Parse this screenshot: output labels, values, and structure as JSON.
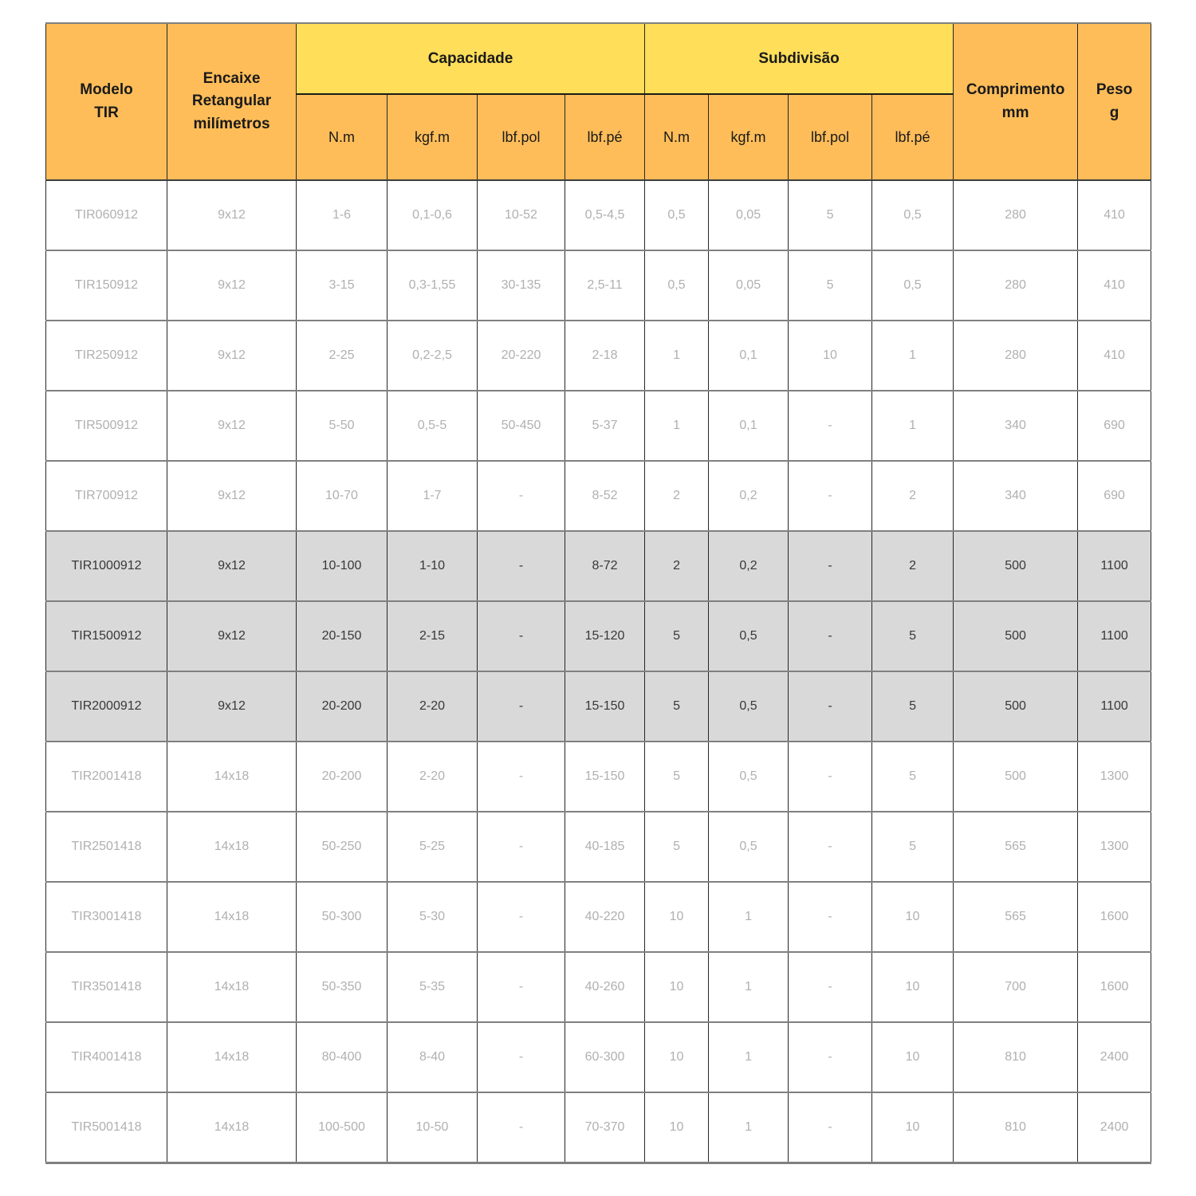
{
  "header": {
    "modelo": [
      "Modelo",
      "TIR"
    ],
    "encaixe": [
      "Encaixe",
      "Retangular",
      "milímetros"
    ],
    "group_capacidade": "Capacidade",
    "group_subdivisao": "Subdivisão",
    "units": [
      "N.m",
      "kgf.m",
      "lbf.pol",
      "lbf.pé",
      "N.m",
      "kgf.m",
      "lbf.pol",
      "lbf.pé"
    ],
    "comprimento": [
      "Comprimento",
      "mm"
    ],
    "peso": [
      "Peso",
      "g"
    ]
  },
  "rows": [
    {
      "modelo": "TIR060912",
      "encaixe": "9x12",
      "cap": [
        "1-6",
        "0,1-0,6",
        "10-52",
        "0,5-4,5"
      ],
      "sub": [
        "0,5",
        "0,05",
        "5",
        "0,5"
      ],
      "comprimento": "280",
      "peso": "410",
      "highlight": false
    },
    {
      "modelo": "TIR150912",
      "encaixe": "9x12",
      "cap": [
        "3-15",
        "0,3-1,55",
        "30-135",
        "2,5-11"
      ],
      "sub": [
        "0,5",
        "0,05",
        "5",
        "0,5"
      ],
      "comprimento": "280",
      "peso": "410",
      "highlight": false
    },
    {
      "modelo": "TIR250912",
      "encaixe": "9x12",
      "cap": [
        "2-25",
        "0,2-2,5",
        "20-220",
        "2-18"
      ],
      "sub": [
        "1",
        "0,1",
        "10",
        "1"
      ],
      "comprimento": "280",
      "peso": "410",
      "highlight": false
    },
    {
      "modelo": "TIR500912",
      "encaixe": "9x12",
      "cap": [
        "5-50",
        "0,5-5",
        "50-450",
        "5-37"
      ],
      "sub": [
        "1",
        "0,1",
        "-",
        "1"
      ],
      "comprimento": "340",
      "peso": "690",
      "highlight": false
    },
    {
      "modelo": "TIR700912",
      "encaixe": "9x12",
      "cap": [
        "10-70",
        "1-7",
        "-",
        "8-52"
      ],
      "sub": [
        "2",
        "0,2",
        "-",
        "2"
      ],
      "comprimento": "340",
      "peso": "690",
      "highlight": false
    },
    {
      "modelo": "TIR1000912",
      "encaixe": "9x12",
      "cap": [
        "10-100",
        "1-10",
        "-",
        "8-72"
      ],
      "sub": [
        "2",
        "0,2",
        "-",
        "2"
      ],
      "comprimento": "500",
      "peso": "1100",
      "highlight": true
    },
    {
      "modelo": "TIR1500912",
      "encaixe": "9x12",
      "cap": [
        "20-150",
        "2-15",
        "-",
        "15-120"
      ],
      "sub": [
        "5",
        "0,5",
        "-",
        "5"
      ],
      "comprimento": "500",
      "peso": "1100",
      "highlight": true
    },
    {
      "modelo": "TIR2000912",
      "encaixe": "9x12",
      "cap": [
        "20-200",
        "2-20",
        "-",
        "15-150"
      ],
      "sub": [
        "5",
        "0,5",
        "-",
        "5"
      ],
      "comprimento": "500",
      "peso": "1100",
      "highlight": true
    },
    {
      "modelo": "TIR2001418",
      "encaixe": "14x18",
      "cap": [
        "20-200",
        "2-20",
        "-",
        "15-150"
      ],
      "sub": [
        "5",
        "0,5",
        "-",
        "5"
      ],
      "comprimento": "500",
      "peso": "1300",
      "highlight": false
    },
    {
      "modelo": "TIR2501418",
      "encaixe": "14x18",
      "cap": [
        "50-250",
        "5-25",
        "-",
        "40-185"
      ],
      "sub": [
        "5",
        "0,5",
        "-",
        "5"
      ],
      "comprimento": "565",
      "peso": "1300",
      "highlight": false
    },
    {
      "modelo": "TIR3001418",
      "encaixe": "14x18",
      "cap": [
        "50-300",
        "5-30",
        "-",
        "40-220"
      ],
      "sub": [
        "10",
        "1",
        "-",
        "10"
      ],
      "comprimento": "565",
      "peso": "1600",
      "highlight": false
    },
    {
      "modelo": "TIR3501418",
      "encaixe": "14x18",
      "cap": [
        "50-350",
        "5-35",
        "-",
        "40-260"
      ],
      "sub": [
        "10",
        "1",
        "-",
        "10"
      ],
      "comprimento": "700",
      "peso": "1600",
      "highlight": false
    },
    {
      "modelo": "TIR4001418",
      "encaixe": "14x18",
      "cap": [
        "80-400",
        "8-40",
        "-",
        "60-300"
      ],
      "sub": [
        "10",
        "1",
        "-",
        "10"
      ],
      "comprimento": "810",
      "peso": "2400",
      "highlight": false
    },
    {
      "modelo": "TIR5001418",
      "encaixe": "14x18",
      "cap": [
        "100-500",
        "10-50",
        "-",
        "70-370"
      ],
      "sub": [
        "10",
        "1",
        "-",
        "10"
      ],
      "comprimento": "810",
      "peso": "2400",
      "highlight": false
    }
  ],
  "colors": {
    "header_orange": "#FFBD59",
    "header_yellow": "#FFDE59",
    "highlight_row_bg": "#D9D9D9",
    "row_text_muted": "#B0B0B0",
    "row_text_dark": "#383838",
    "border_dark": "#262626",
    "border_gray": "#808080"
  }
}
